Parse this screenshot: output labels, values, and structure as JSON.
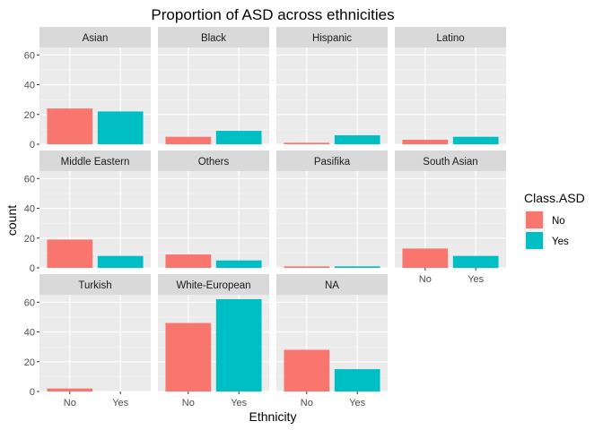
{
  "chart_data": {
    "type": "bar",
    "title": "Proportion of ASD across ethnicities",
    "xlabel": "Ethnicity",
    "ylabel": "count",
    "categories": [
      "No",
      "Yes"
    ],
    "ylim": [
      0,
      65
    ],
    "yticks": [
      0,
      20,
      40,
      60
    ],
    "grid": true,
    "legend": {
      "title": "Class.ASD",
      "placement": "right",
      "entries": [
        {
          "label": "No",
          "color": "#F8766D"
        },
        {
          "label": "Yes",
          "color": "#00BFC4"
        }
      ]
    },
    "panels": [
      {
        "name": "Asian",
        "values": [
          24,
          22
        ]
      },
      {
        "name": "Black",
        "values": [
          5,
          9
        ]
      },
      {
        "name": "Hispanic",
        "values": [
          1,
          6
        ]
      },
      {
        "name": "Latino",
        "values": [
          3,
          5
        ]
      },
      {
        "name": "Middle Eastern",
        "values": [
          19,
          8
        ]
      },
      {
        "name": "Others",
        "values": [
          9,
          5
        ]
      },
      {
        "name": "Pasifika",
        "values": [
          1,
          1
        ]
      },
      {
        "name": "South Asian",
        "values": [
          13,
          8
        ]
      },
      {
        "name": "Turkish",
        "values": [
          2,
          0
        ]
      },
      {
        "name": "White-European",
        "values": [
          46,
          62
        ]
      },
      {
        "name": "NA",
        "values": [
          28,
          15
        ]
      }
    ]
  }
}
